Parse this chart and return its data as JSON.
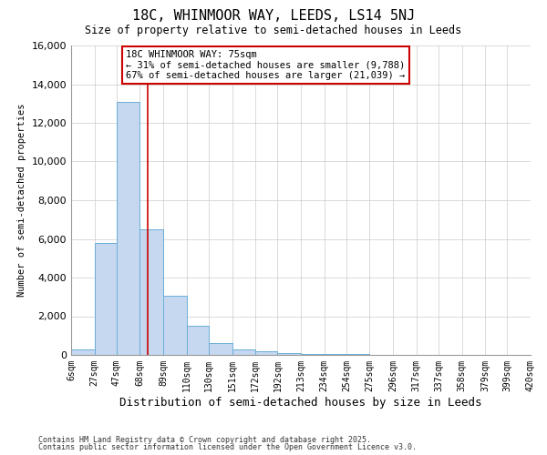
{
  "title1": "18C, WHINMOOR WAY, LEEDS, LS14 5NJ",
  "title2": "Size of property relative to semi-detached houses in Leeds",
  "xlabel": "Distribution of semi-detached houses by size in Leeds",
  "ylabel": "Number of semi-detached properties",
  "footnote1": "Contains HM Land Registry data © Crown copyright and database right 2025.",
  "footnote2": "Contains public sector information licensed under the Open Government Licence v3.0.",
  "annotation_title": "18C WHINMOOR WAY: 75sqm",
  "annotation_line1": "← 31% of semi-detached houses are smaller (9,788)",
  "annotation_line2": "67% of semi-detached houses are larger (21,039) →",
  "property_size": 75,
  "bar_left_edges": [
    6,
    27,
    47,
    68,
    89,
    110,
    130,
    151,
    172,
    192,
    213,
    234,
    254,
    275,
    296,
    317,
    337,
    358,
    379,
    399
  ],
  "bar_widths": [
    21,
    20,
    21,
    21,
    21,
    20,
    21,
    21,
    20,
    21,
    21,
    20,
    21,
    21,
    21,
    20,
    21,
    21,
    20,
    21
  ],
  "bar_heights": [
    300,
    5800,
    13100,
    6500,
    3050,
    1500,
    600,
    300,
    200,
    100,
    60,
    40,
    30,
    0,
    0,
    0,
    0,
    0,
    0,
    0
  ],
  "bar_color": "#c5d8f0",
  "bar_edge_color": "#6baed6",
  "vline_color": "#cc0000",
  "vline_x": 75,
  "box_facecolor": "white",
  "box_edgecolor": "#cc0000",
  "ylim": [
    0,
    16000
  ],
  "yticks": [
    0,
    2000,
    4000,
    6000,
    8000,
    10000,
    12000,
    14000,
    16000
  ],
  "xtick_labels": [
    "6sqm",
    "27sqm",
    "47sqm",
    "68sqm",
    "89sqm",
    "110sqm",
    "130sqm",
    "151sqm",
    "172sqm",
    "192sqm",
    "213sqm",
    "234sqm",
    "254sqm",
    "275sqm",
    "296sqm",
    "317sqm",
    "337sqm",
    "358sqm",
    "379sqm",
    "399sqm",
    "420sqm"
  ],
  "xtick_positions": [
    6,
    27,
    47,
    68,
    89,
    110,
    130,
    151,
    172,
    192,
    213,
    234,
    254,
    275,
    296,
    317,
    337,
    358,
    379,
    399,
    420
  ],
  "grid_color": "#cccccc",
  "bg_color": "#ffffff"
}
